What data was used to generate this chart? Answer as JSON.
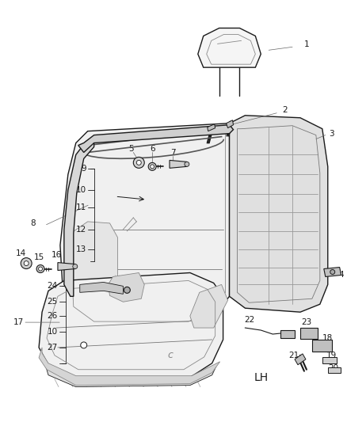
{
  "background_color": "#ffffff",
  "fig_width": 4.38,
  "fig_height": 5.33,
  "dpi": 100,
  "lh_label": "LH",
  "line_color": "#1a1a1a",
  "gray_light": "#e8e8e8",
  "gray_mid": "#cccccc",
  "gray_dark": "#aaaaaa"
}
